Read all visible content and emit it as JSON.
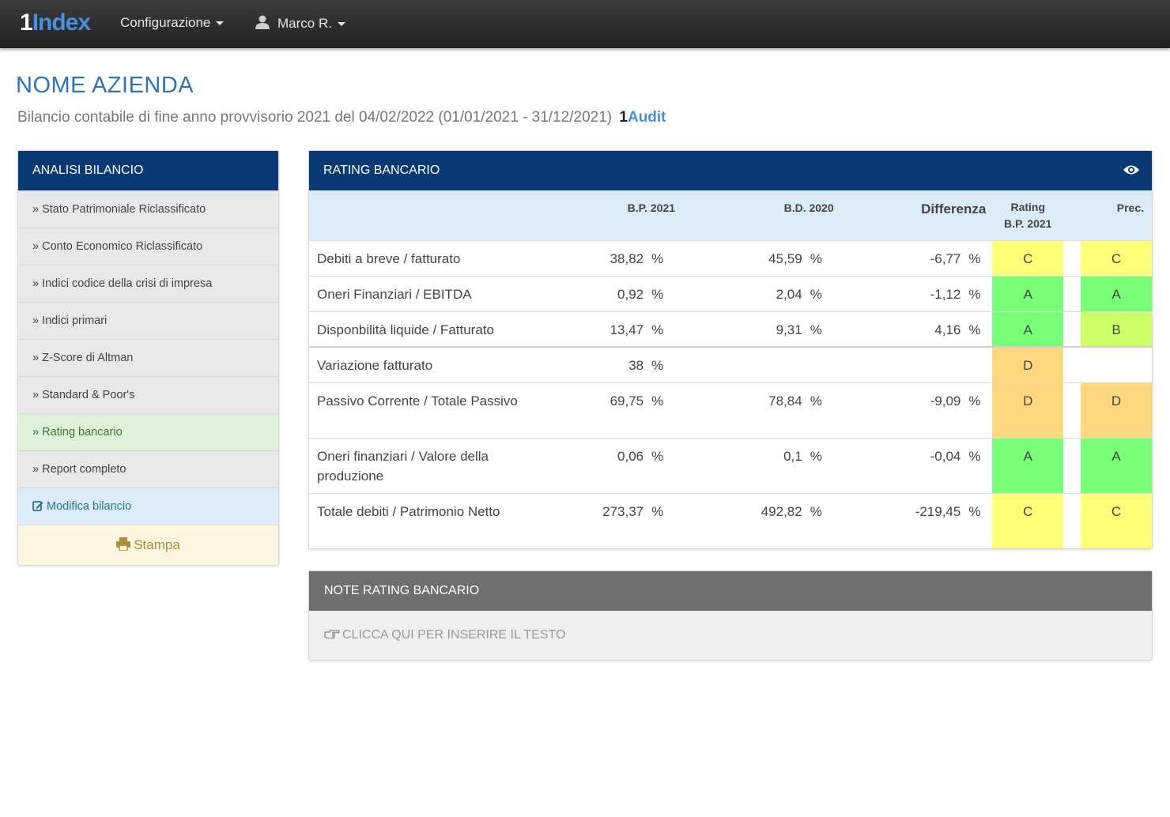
{
  "navbar": {
    "brand_one": "1",
    "brand_word": "Index",
    "config_label": "Configurazione",
    "user_label": "Marco R."
  },
  "header": {
    "company": "NOME AZIENDA",
    "subtitle": "Bilancio contabile di fine anno provvisorio 2021 del 04/02/2022 (01/01/2021 - 31/12/2021)",
    "audit_one": "1",
    "audit_word": "Audit"
  },
  "sidebar": {
    "title": "ANALISI BILANCIO",
    "items": [
      {
        "label": "» Stato Patrimoniale Riclassificato"
      },
      {
        "label": "» Conto Economico Riclassificato"
      },
      {
        "label": "» Indici codice della crisi di impresa"
      },
      {
        "label": "» Indici primari"
      },
      {
        "label": "» Z-Score di Altman"
      },
      {
        "label": "» Standard & Poor's"
      },
      {
        "label": "» Rating bancario"
      },
      {
        "label": "» Report completo"
      }
    ],
    "edit_label": "Modifica bilancio",
    "print_label": "Stampa"
  },
  "rating": {
    "title": "RATING BANCARIO",
    "columns": {
      "bp": "B.P. 2021",
      "bd": "B.D. 2020",
      "diff": "Differenza",
      "rating_line1": "Rating",
      "rating_line2": "B.P. 2021",
      "prec": "Prec."
    },
    "rows": [
      {
        "label": "Debiti a breve / fatturato",
        "bp": "38,82",
        "bp_unit": "%",
        "bd": "45,59",
        "bd_unit": "%",
        "diff": "-6,77",
        "diff_unit": "%",
        "rating": "C",
        "prec": "C"
      },
      {
        "label": "Oneri Finanziari / EBITDA",
        "bp": "0,92",
        "bp_unit": "%",
        "bd": "2,04",
        "bd_unit": "%",
        "diff": "-1,12",
        "diff_unit": "%",
        "rating": "A",
        "prec": "A"
      },
      {
        "label": "Disponbilità liquide / Fatturato",
        "bp": "13,47",
        "bp_unit": "%",
        "bd": "9,31",
        "bd_unit": "%",
        "diff": "4,16",
        "diff_unit": "%",
        "rating": "A",
        "prec": "B"
      },
      {
        "label": "Variazione fatturato",
        "bp": "38",
        "bp_unit": "%",
        "bd": "",
        "bd_unit": "",
        "diff": "",
        "diff_unit": "",
        "rating": "D",
        "prec": ""
      },
      {
        "label": "Passivo Corrente / Totale Passivo",
        "bp": "69,75",
        "bp_unit": "%",
        "bd": "78,84",
        "bd_unit": "%",
        "diff": "-9,09",
        "diff_unit": "%",
        "rating": "D",
        "prec": "D"
      },
      {
        "label": "Oneri finanziari / Valore della produzione",
        "bp": "0,06",
        "bp_unit": "%",
        "bd": "0,1",
        "bd_unit": "%",
        "diff": "-0,04",
        "diff_unit": "%",
        "rating": "A",
        "prec": "A"
      },
      {
        "label": "Totale debiti / Patrimonio Netto",
        "bp": "273,37",
        "bp_unit": "%",
        "bd": "492,82",
        "bd_unit": "%",
        "diff": "-219,45",
        "diff_unit": "%",
        "rating": "C",
        "prec": "C"
      }
    ]
  },
  "note": {
    "title": "NOTE RATING BANCARIO",
    "placeholder": "CLICCA QUI PER INSERIRE IL TESTO"
  },
  "colors": {
    "nav_bg": "#2b2b2b",
    "panel_blue": "#0a3a73",
    "title_blue": "#2e74b5",
    "grade_A": "#77ff77",
    "grade_B": "#ccff66",
    "grade_C": "#ffff77",
    "grade_D": "#ffd77f"
  },
  "icons": [
    "user-icon",
    "edit-icon",
    "print-icon",
    "eye-icon",
    "hand-pointer-icon"
  ]
}
